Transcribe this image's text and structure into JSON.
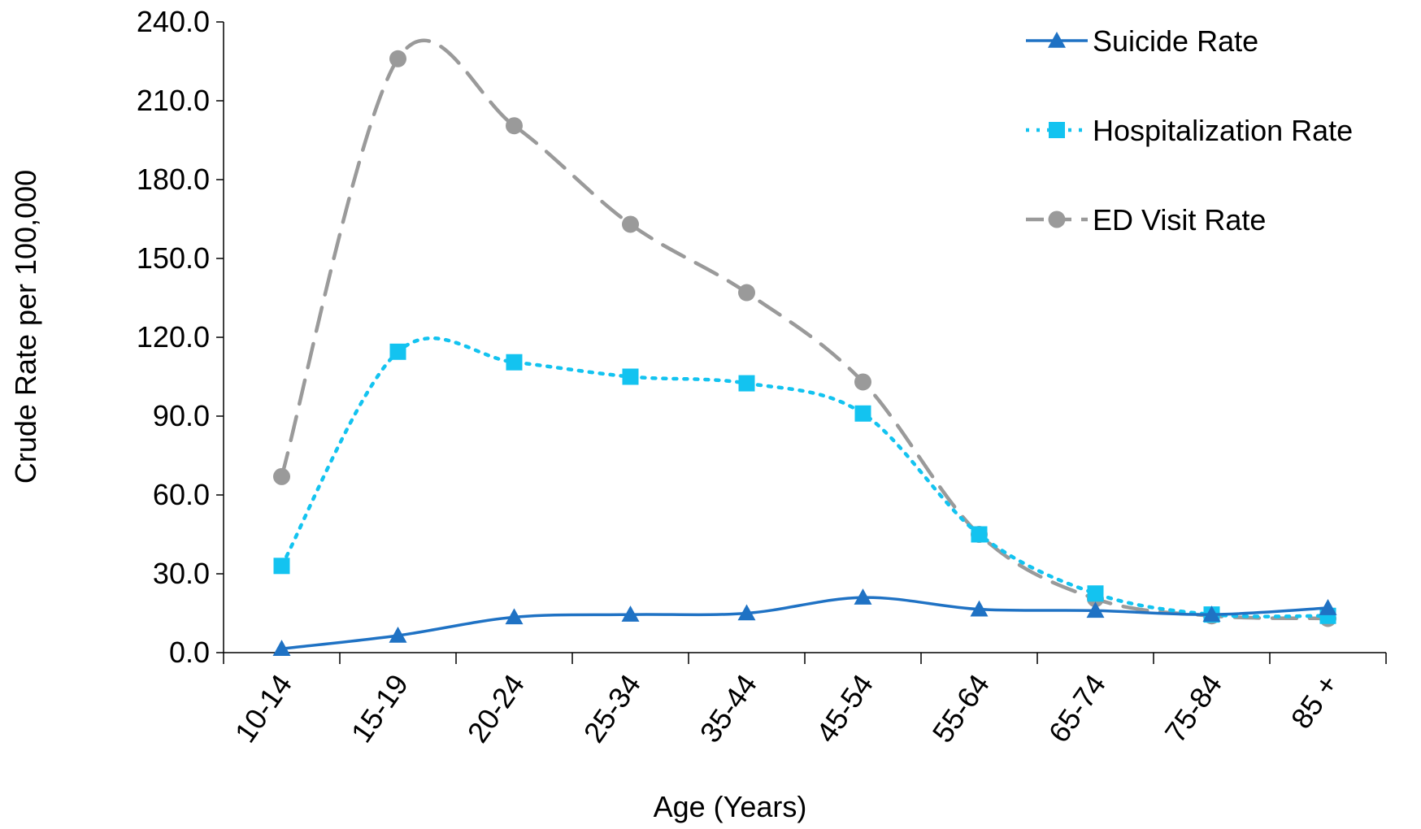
{
  "chart_data": {
    "type": "line",
    "title": "",
    "xlabel": "Age (Years)",
    "ylabel": "Crude Rate per 100,000",
    "ylim": [
      0,
      240
    ],
    "yticks": [
      "0.0",
      "30.0",
      "60.0",
      "90.0",
      "120.0",
      "150.0",
      "180.0",
      "210.0",
      "240.0"
    ],
    "categories": [
      "10-14",
      "15-19",
      "20-24",
      "25-34",
      "35-44",
      "45-54",
      "55-64",
      "65-74",
      "75-84",
      "85 +"
    ],
    "legend_position": "top-right",
    "grid": false,
    "series": [
      {
        "name": "Suicide Rate",
        "marker": "triangle",
        "line_style": "solid",
        "color": "#1F72C4",
        "values": [
          1.5,
          6.5,
          13.5,
          14.5,
          15.0,
          21.0,
          16.5,
          16.0,
          14.5,
          17.0
        ]
      },
      {
        "name": "Hospitalization Rate",
        "marker": "square",
        "line_style": "dotted",
        "color": "#13C3F0",
        "values": [
          33.0,
          114.5,
          110.5,
          105.0,
          102.5,
          91.0,
          45.0,
          22.5,
          14.5,
          14.0
        ]
      },
      {
        "name": "ED Visit Rate",
        "marker": "circle",
        "line_style": "dashed",
        "color": "#9A9A9A",
        "values": [
          67.0,
          226.0,
          200.5,
          163.0,
          137.0,
          103.0,
          45.0,
          20.5,
          14.0,
          13.0
        ]
      }
    ]
  }
}
